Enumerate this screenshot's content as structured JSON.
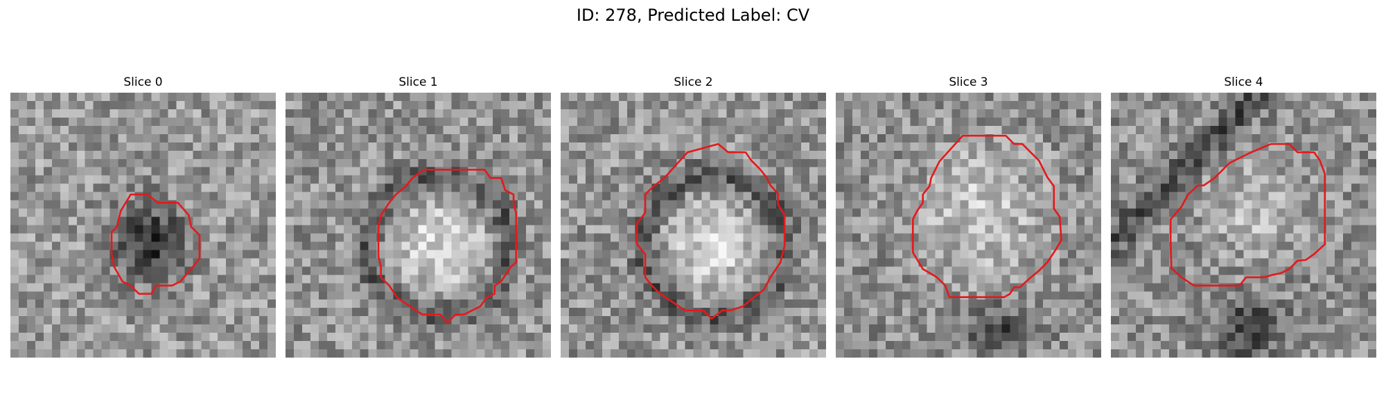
{
  "figure": {
    "title": "ID: 278, Predicted Label: CV"
  },
  "panels": [
    {
      "title": "Slice 0",
      "grid_size": 32,
      "contour_color": "#e31a1c",
      "seed": 101,
      "pattern": "dark-blob"
    },
    {
      "title": "Slice 1",
      "grid_size": 32,
      "contour_color": "#e31a1c",
      "seed": 202,
      "pattern": "bright-core-dark-ring"
    },
    {
      "title": "Slice 2",
      "grid_size": 32,
      "contour_color": "#e31a1c",
      "seed": 303,
      "pattern": "bright-core-dark-ring"
    },
    {
      "title": "Slice 3",
      "grid_size": 32,
      "contour_color": "#e31a1c",
      "seed": 404,
      "pattern": "bright-core"
    },
    {
      "title": "Slice 4",
      "grid_size": 32,
      "contour_color": "#e31a1c",
      "seed": 505,
      "pattern": "mottled"
    }
  ]
}
